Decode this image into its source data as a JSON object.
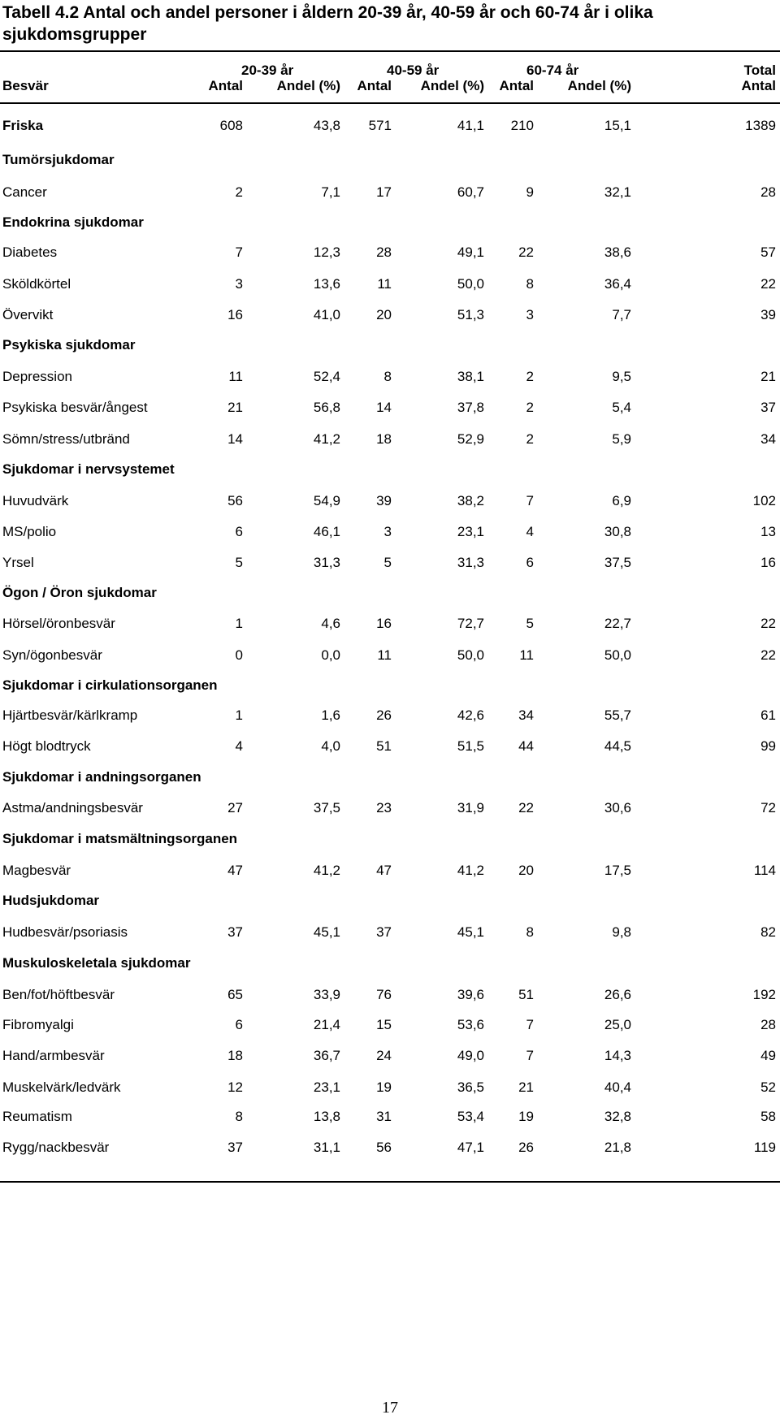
{
  "title": "Tabell 4.2 Antal och andel personer i åldern 20-39 år, 40-59 år och 60-74 år i olika sjukdomsgrupper",
  "header": {
    "groups": [
      "20-39 år",
      "40-59 år",
      "60-74 år",
      "Total"
    ],
    "besvar": "Besvär",
    "cols": [
      "Antal",
      "Andel (%)",
      "Antal",
      "Andel (%)",
      "Antal",
      "Andel (%)",
      "Antal"
    ]
  },
  "rows": [
    {
      "type": "data",
      "bold": true,
      "label": "Friska",
      "v": [
        "608",
        "43,8",
        "571",
        "41,1",
        "210",
        "15,1",
        "1389"
      ]
    },
    {
      "type": "heading",
      "label": "Tumörsjukdomar"
    },
    {
      "type": "data",
      "label": "Cancer",
      "v": [
        "2",
        "7,1",
        "17",
        "60,7",
        "9",
        "32,1",
        "28"
      ]
    },
    {
      "type": "heading",
      "label": "Endokrina sjukdomar"
    },
    {
      "type": "data",
      "label": "Diabetes",
      "v": [
        "7",
        "12,3",
        "28",
        "49,1",
        "22",
        "38,6",
        "57"
      ]
    },
    {
      "type": "data",
      "label": "Sköldkörtel",
      "v": [
        "3",
        "13,6",
        "11",
        "50,0",
        "8",
        "36,4",
        "22"
      ]
    },
    {
      "type": "data",
      "label": "Övervikt",
      "v": [
        "16",
        "41,0",
        "20",
        "51,3",
        "3",
        "7,7",
        "39"
      ]
    },
    {
      "type": "heading",
      "label": "Psykiska sjukdomar"
    },
    {
      "type": "data",
      "label": "Depression",
      "v": [
        "11",
        "52,4",
        "8",
        "38,1",
        "2",
        "9,5",
        "21"
      ]
    },
    {
      "type": "data",
      "label": "Psykiska besvär/ångest",
      "v": [
        "21",
        "56,8",
        "14",
        "37,8",
        "2",
        "5,4",
        "37"
      ]
    },
    {
      "type": "data",
      "label": "Sömn/stress/utbränd",
      "v": [
        "14",
        "41,2",
        "18",
        "52,9",
        "2",
        "5,9",
        "34"
      ]
    },
    {
      "type": "heading",
      "label": "Sjukdomar i nervsystemet"
    },
    {
      "type": "data",
      "label": "Huvudvärk",
      "v": [
        "56",
        "54,9",
        "39",
        "38,2",
        "7",
        "6,9",
        "102"
      ]
    },
    {
      "type": "data",
      "label": "MS/polio",
      "v": [
        "6",
        "46,1",
        "3",
        "23,1",
        "4",
        "30,8",
        "13"
      ]
    },
    {
      "type": "data",
      "label": "Yrsel",
      "v": [
        "5",
        "31,3",
        "5",
        "31,3",
        "6",
        "37,5",
        "16"
      ]
    },
    {
      "type": "heading",
      "label": "Ögon / Öron sjukdomar"
    },
    {
      "type": "data",
      "label": "Hörsel/öronbesvär",
      "v": [
        "1",
        "4,6",
        "16",
        "72,7",
        "5",
        "22,7",
        "22"
      ]
    },
    {
      "type": "data",
      "label": "Syn/ögonbesvär",
      "v": [
        "0",
        "0,0",
        "11",
        "50,0",
        "11",
        "50,0",
        "22"
      ]
    },
    {
      "type": "heading",
      "label": "Sjukdomar i cirkulationsorganen"
    },
    {
      "type": "data",
      "label": "Hjärtbesvär/kärlkramp",
      "v": [
        "1",
        "1,6",
        "26",
        "42,6",
        "34",
        "55,7",
        "61"
      ]
    },
    {
      "type": "data",
      "label": "Högt blodtryck",
      "v": [
        "4",
        "4,0",
        "51",
        "51,5",
        "44",
        "44,5",
        "99"
      ]
    },
    {
      "type": "heading",
      "label": "Sjukdomar i andningsorganen"
    },
    {
      "type": "data",
      "label": "Astma/andningsbesvär",
      "v": [
        "27",
        "37,5",
        "23",
        "31,9",
        "22",
        "30,6",
        "72"
      ]
    },
    {
      "type": "heading",
      "label": "Sjukdomar i matsmältningsorganen"
    },
    {
      "type": "data",
      "label": "Magbesvär",
      "v": [
        "47",
        "41,2",
        "47",
        "41,2",
        "20",
        "17,5",
        "114"
      ]
    },
    {
      "type": "heading",
      "label": "Hudsjukdomar"
    },
    {
      "type": "data",
      "label": "Hudbesvär/psoriasis",
      "v": [
        "37",
        "45,1",
        "37",
        "45,1",
        "8",
        "9,8",
        "82"
      ]
    },
    {
      "type": "heading",
      "label": "Muskuloskeletala sjukdomar"
    },
    {
      "type": "data",
      "label": "Ben/fot/höftbesvär",
      "v": [
        "65",
        "33,9",
        "76",
        "39,6",
        "51",
        "26,6",
        "192"
      ]
    },
    {
      "type": "data",
      "label": "Fibromyalgi",
      "v": [
        "6",
        "21,4",
        "15",
        "53,6",
        "7",
        "25,0",
        "28"
      ]
    },
    {
      "type": "data",
      "label": "Hand/armbesvär",
      "v": [
        "18",
        "36,7",
        "24",
        "49,0",
        "7",
        "14,3",
        "49"
      ]
    },
    {
      "type": "data",
      "label": "Muskelvärk/ledvärk",
      "v": [
        "12",
        "23,1",
        "19",
        "36,5",
        "21",
        "40,4",
        "52"
      ]
    },
    {
      "type": "data",
      "label": "Reumatism",
      "v": [
        "8",
        "13,8",
        "31",
        "53,4",
        "19",
        "32,8",
        "58"
      ]
    },
    {
      "type": "data",
      "label": "Rygg/nackbesvär",
      "v": [
        "37",
        "31,1",
        "56",
        "47,1",
        "26",
        "21,8",
        "119"
      ]
    }
  ],
  "page_number": "17"
}
